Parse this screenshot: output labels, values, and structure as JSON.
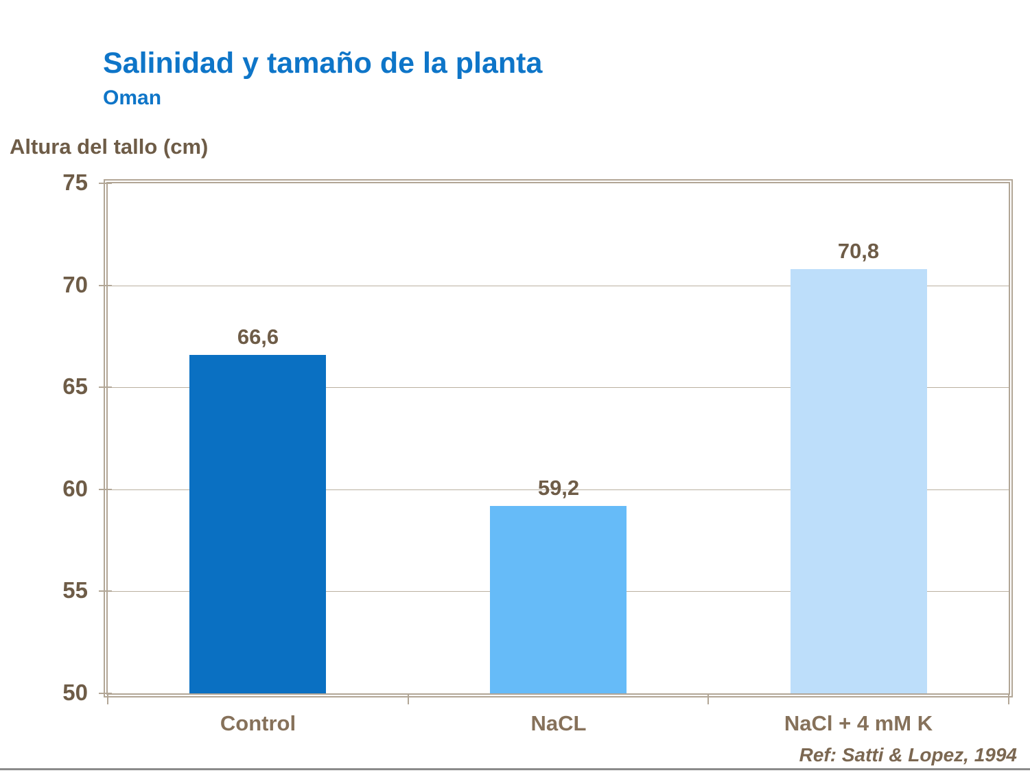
{
  "slide": {
    "title": "Salinidad y tamaño de la planta",
    "subtitle": "Oman",
    "reference": "Ref: Satti & Lopez, 1994"
  },
  "chart_data": {
    "type": "bar",
    "title": "Salinidad y tamaño de la planta",
    "subtitle": "Oman",
    "ylabel": "Altura del tallo (cm)",
    "xlabel": "",
    "categories": [
      "Control",
      "NaCL",
      "NaCl + 4 mM K"
    ],
    "values": [
      66.6,
      59.2,
      70.8
    ],
    "value_labels": [
      "66,6",
      "59,2",
      "70,8"
    ],
    "bar_colors": [
      "#0a70c2",
      "#66bbf8",
      "#bddefa"
    ],
    "ylim": [
      50,
      75
    ],
    "yticks": [
      50,
      55,
      60,
      65,
      70,
      75
    ],
    "grid": true,
    "legend_position": "none",
    "reference": "Ref: Satti & Lopez, 1994"
  },
  "colors": {
    "title_blue": "#0e75c8",
    "axis_text_brown": "#6e5c47",
    "category_text_brown": "#86715a",
    "reference_brown": "#7b6751",
    "frame_tan": "#b2a696",
    "gridline_tan": "#bab0a0",
    "bottom_rule_gray": "#8b8b8b"
  }
}
